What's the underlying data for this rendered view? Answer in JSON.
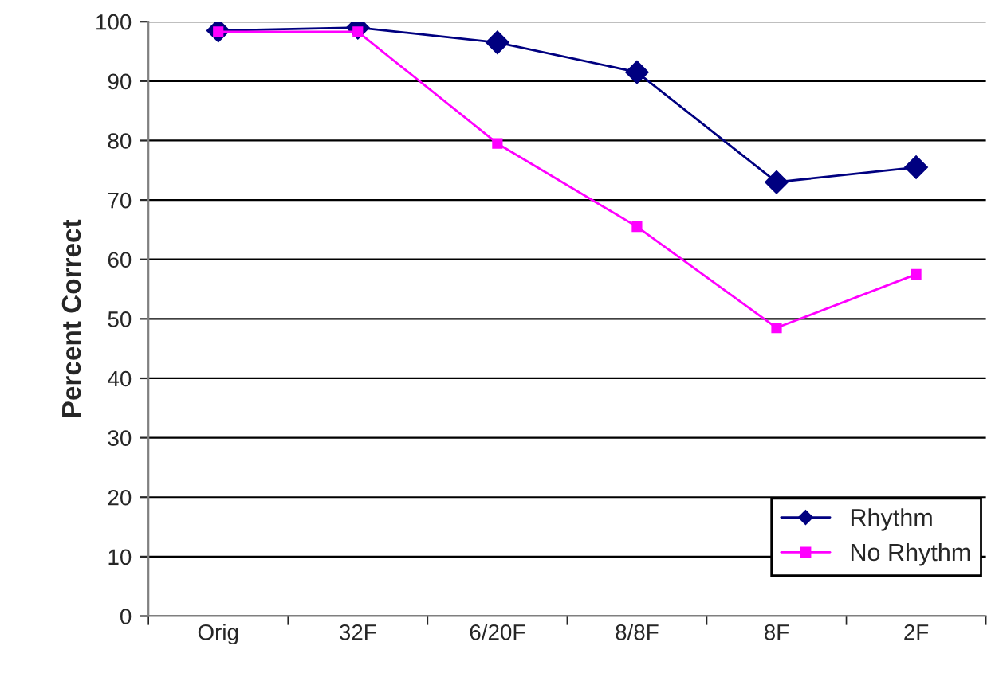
{
  "chart_data": {
    "type": "line",
    "ylabel": "Percent Correct",
    "categories": [
      "Orig",
      "32F",
      "6/20F",
      "8/8F",
      "8F",
      "2F"
    ],
    "series": [
      {
        "name": "Rhythm",
        "color": "#000080",
        "marker": "diamond",
        "values": [
          98.5,
          99,
          96.5,
          91.5,
          73,
          75.5
        ]
      },
      {
        "name": "No Rhythm",
        "color": "#ff00ff",
        "marker": "square",
        "values": [
          98.3,
          98.3,
          79.5,
          65.5,
          48.5,
          57.5
        ]
      }
    ],
    "ylim": [
      0,
      100
    ],
    "yticks": [
      0,
      10,
      20,
      30,
      40,
      50,
      60,
      70,
      80,
      90,
      100
    ],
    "grid": "y",
    "legend": "bottom right",
    "line_style": "solid"
  }
}
